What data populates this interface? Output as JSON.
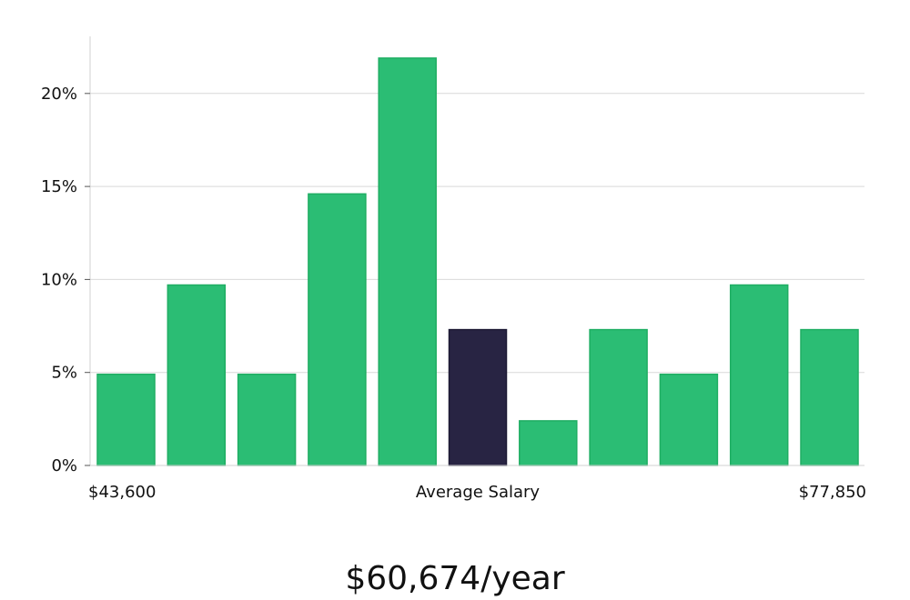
{
  "chart_data": {
    "type": "bar",
    "values": [
      4.9,
      9.7,
      4.9,
      14.6,
      21.9,
      7.3,
      2.4,
      7.3,
      4.9,
      9.7,
      7.3
    ],
    "highlight_index": 5,
    "ylim": [
      0,
      23
    ],
    "yticks": [
      0,
      5,
      10,
      15,
      20
    ],
    "ytick_labels": [
      "0%",
      "5%",
      "10%",
      "15%",
      "20%"
    ],
    "x_labels": {
      "left": "$43,600",
      "center": "Average Salary",
      "right": "$77,850"
    },
    "grid": true,
    "colors": {
      "bar": "#2bbd74",
      "bar_edge": "#1fae63",
      "highlight": "#282443",
      "grid": "#d9d9d9",
      "axis": "#d0d0d0"
    }
  },
  "summary": {
    "salary_text": "$60,674/year"
  }
}
